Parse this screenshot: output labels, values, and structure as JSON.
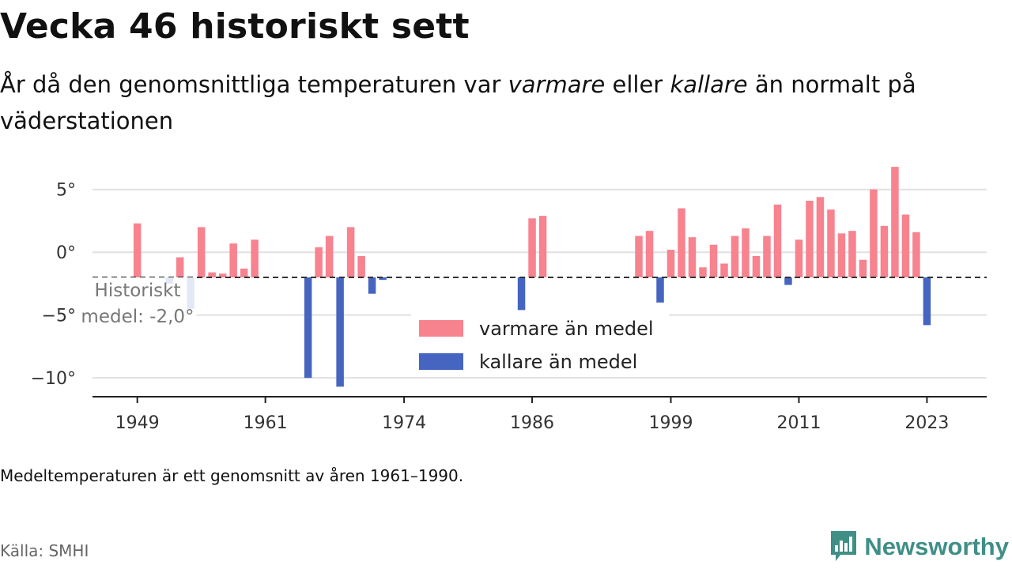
{
  "title": "Vecka 46 historiskt sett",
  "subtitle": {
    "part1": "År då den genomsnittliga temperaturen var ",
    "warm_word": "varmare",
    "part2": " eller ",
    "cold_word": "kallare",
    "part3": " än normalt på väderstationen"
  },
  "note": "Medeltemperaturen är ett genomsnitt av åren 1961–1990.",
  "source": "Källa: SMHI",
  "brand": {
    "name": "Newsworthy",
    "icon": "newsworthy-chart-logo-icon",
    "color": "#3f8f86"
  },
  "colors": {
    "warm": "#f7838f",
    "cold": "#4565c0",
    "baseline": "#333333",
    "grid": "#e1e1e1",
    "axis": "#222222"
  },
  "chart_data": {
    "type": "bar",
    "baseline": -2.0,
    "baseline_label_lines": [
      "Historiskt",
      "medel: -2,0°"
    ],
    "ylim": [
      -11.5,
      7.5
    ],
    "yticks": [
      5,
      0,
      -5,
      -10
    ],
    "ytick_labels": [
      "5°",
      "0°",
      "−5°",
      "−10°"
    ],
    "xlim": [
      1944.8,
      2028.6
    ],
    "xticks": [
      1949,
      1961,
      1974,
      1986,
      1999,
      2011,
      2023
    ],
    "legend": {
      "position": "center-bottom",
      "warm_label": "varmare än medel",
      "cold_label": "kallare än medel"
    },
    "xlabel": "",
    "ylabel": "",
    "values": [
      {
        "year": 1949,
        "value": 2.3
      },
      {
        "year": 1952,
        "value": -2.5
      },
      {
        "year": 1953,
        "value": -0.4
      },
      {
        "year": 1954,
        "value": -4.5
      },
      {
        "year": 1955,
        "value": 2.0
      },
      {
        "year": 1956,
        "value": -1.6
      },
      {
        "year": 1957,
        "value": -1.7
      },
      {
        "year": 1958,
        "value": 0.7
      },
      {
        "year": 1959,
        "value": -1.3
      },
      {
        "year": 1960,
        "value": 1.0
      },
      {
        "year": 1965,
        "value": -10.0
      },
      {
        "year": 1966,
        "value": 0.4
      },
      {
        "year": 1967,
        "value": 1.3
      },
      {
        "year": 1968,
        "value": -10.7
      },
      {
        "year": 1969,
        "value": 2.0
      },
      {
        "year": 1970,
        "value": -0.3
      },
      {
        "year": 1971,
        "value": -3.3
      },
      {
        "year": 1972,
        "value": -2.2
      },
      {
        "year": 1985,
        "value": -4.6
      },
      {
        "year": 1986,
        "value": 2.7
      },
      {
        "year": 1987,
        "value": 2.9
      },
      {
        "year": 1996,
        "value": 1.3
      },
      {
        "year": 1997,
        "value": 1.7
      },
      {
        "year": 1998,
        "value": -4.0
      },
      {
        "year": 1999,
        "value": 0.2
      },
      {
        "year": 2000,
        "value": 3.5
      },
      {
        "year": 2001,
        "value": 1.2
      },
      {
        "year": 2002,
        "value": -1.2
      },
      {
        "year": 2003,
        "value": 0.6
      },
      {
        "year": 2004,
        "value": -0.9
      },
      {
        "year": 2005,
        "value": 1.3
      },
      {
        "year": 2006,
        "value": 1.9
      },
      {
        "year": 2007,
        "value": -0.3
      },
      {
        "year": 2008,
        "value": 1.3
      },
      {
        "year": 2009,
        "value": 3.8
      },
      {
        "year": 2010,
        "value": -2.6
      },
      {
        "year": 2011,
        "value": 1.0
      },
      {
        "year": 2012,
        "value": 4.1
      },
      {
        "year": 2013,
        "value": 4.4
      },
      {
        "year": 2014,
        "value": 3.4
      },
      {
        "year": 2015,
        "value": 1.5
      },
      {
        "year": 2016,
        "value": 1.7
      },
      {
        "year": 2017,
        "value": -0.6
      },
      {
        "year": 2018,
        "value": 5.0
      },
      {
        "year": 2019,
        "value": 2.1
      },
      {
        "year": 2020,
        "value": 6.8
      },
      {
        "year": 2021,
        "value": 3.0
      },
      {
        "year": 2022,
        "value": 1.6
      },
      {
        "year": 2023,
        "value": -5.8
      }
    ]
  }
}
